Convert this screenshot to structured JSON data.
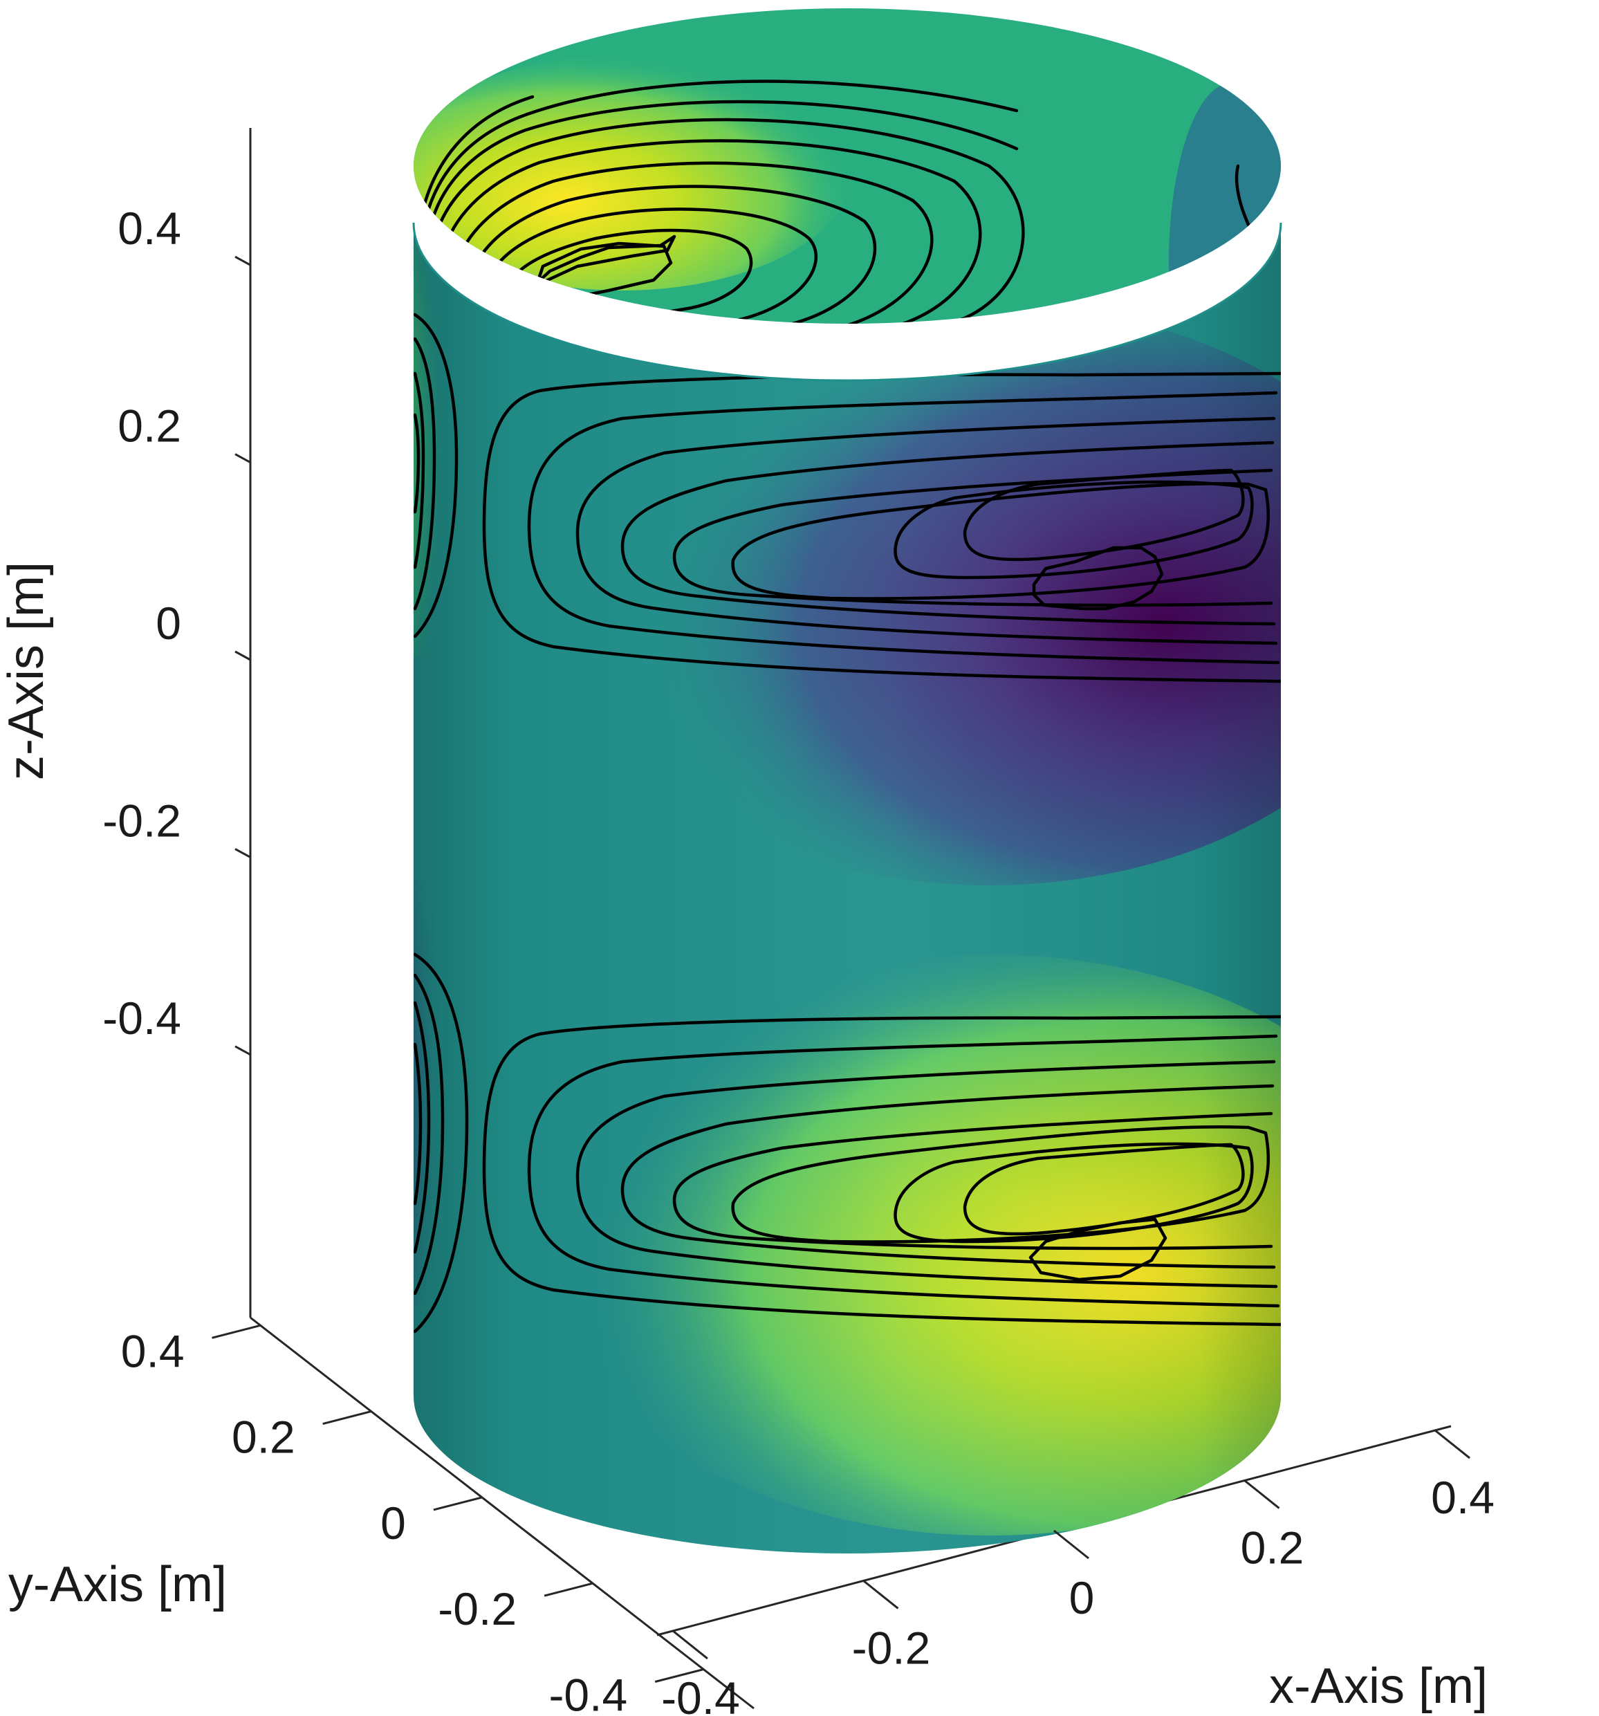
{
  "chart_data": {
    "type": "surface3d",
    "surface": "cylinder",
    "colormap": "viridis",
    "contour_lines": true,
    "title": "",
    "xlabel": "x-Axis [m]",
    "ylabel": "y-Axis [m]",
    "zlabel": "z-Axis [m]",
    "xlim": [
      -0.4,
      0.4
    ],
    "ylim": [
      -0.4,
      0.4
    ],
    "zlim": [
      -0.5,
      0.5
    ],
    "x_ticks": [
      {
        "value": -0.4,
        "label": "-0.4"
      },
      {
        "value": -0.2,
        "label": "-0.2"
      },
      {
        "value": 0,
        "label": "0"
      },
      {
        "value": 0.2,
        "label": "0.2"
      },
      {
        "value": 0.4,
        "label": "0.4"
      }
    ],
    "y_ticks": [
      {
        "value": -0.4,
        "label": "-0.4"
      },
      {
        "value": -0.2,
        "label": "-0.2"
      },
      {
        "value": 0,
        "label": "0"
      },
      {
        "value": 0.2,
        "label": "0.2"
      },
      {
        "value": 0.4,
        "label": "0.4"
      }
    ],
    "z_ticks": [
      {
        "value": -0.4,
        "label": "-0.4"
      },
      {
        "value": -0.2,
        "label": "-0.2"
      },
      {
        "value": 0,
        "label": "0"
      },
      {
        "value": 0.2,
        "label": "0.2"
      },
      {
        "value": 0.4,
        "label": "0.4"
      }
    ],
    "colors": {
      "viridis_dark": "#440154",
      "viridis_blue": "#3b528b",
      "viridis_teal": "#21918c",
      "viridis_green": "#5ec962",
      "viridis_yellow": "#fde725"
    }
  }
}
